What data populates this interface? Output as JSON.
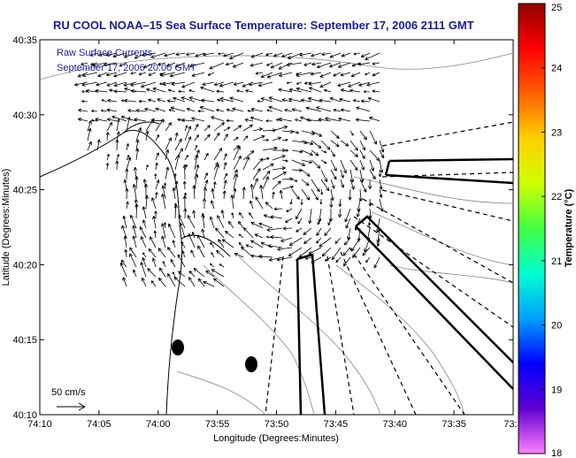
{
  "title": "RU COOL  NOAA–15  Sea Surface Temperature:  September 17, 2006 2111 GMT",
  "legend": {
    "line1": "Raw Surface Currents",
    "line2": "September 17, 2006 20:00 GMT"
  },
  "scale_label": "50 cm/s",
  "axes": {
    "xlabel": "Longitude (Degrees:Minutes)",
    "ylabel": "Latitude (Degrees:Minutes)",
    "xticks": [
      "74:10",
      "74:05",
      "74:00",
      "73:55",
      "73:50",
      "73:45",
      "73:40",
      "73:35",
      "73:3"
    ],
    "yticks": [
      "40:35",
      "40:30",
      "40:25",
      "40:20",
      "40:15",
      "40:10"
    ]
  },
  "colorbar": {
    "label": "Temperature (°C)",
    "ticks": [
      "25",
      "24",
      "23",
      "22",
      "21",
      "20",
      "19",
      "18"
    ],
    "min": 18,
    "max": 25,
    "colors": [
      "#ff80ff",
      "#6000d0",
      "#0000ff",
      "#00a0ff",
      "#00ffd0",
      "#40ff40",
      "#d0ff00",
      "#ffd000",
      "#ff6000",
      "#ff0000",
      "#900000"
    ]
  },
  "colors": {
    "title": "#1a1aa0",
    "coast": "#000000",
    "bathymetry": "#888888"
  }
}
